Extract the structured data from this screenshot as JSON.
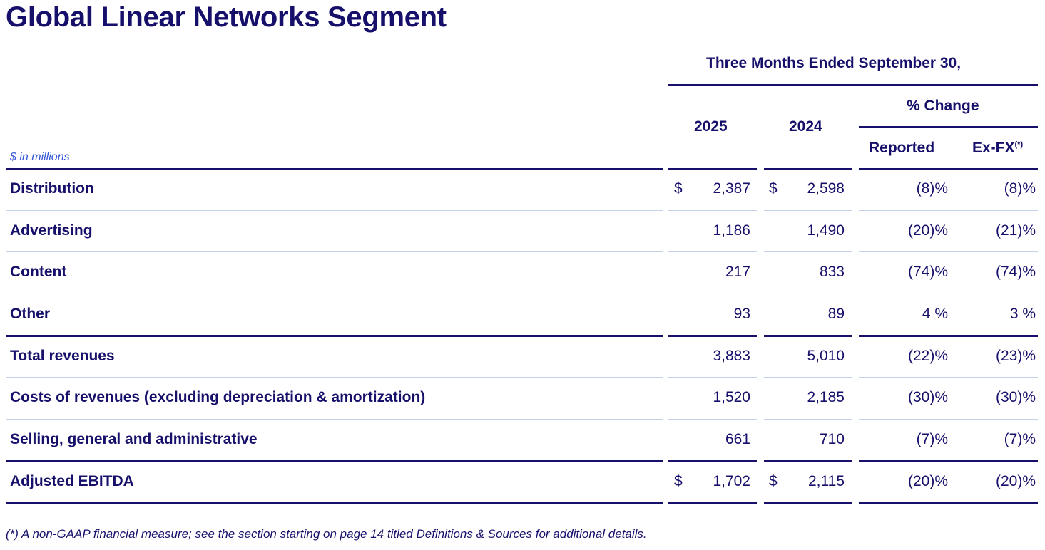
{
  "title": "Global Linear Networks Segment",
  "header": {
    "period": "Three Months Ended September 30,",
    "col_2025": "2025",
    "col_2024": "2024",
    "pct_change": "% Change",
    "reported": "Reported",
    "exfx": "Ex-FX",
    "exfx_sup": "(*)",
    "units": "$ in millions"
  },
  "rows": [
    {
      "label": "Distribution",
      "cur": "$",
      "v2025": "2,387",
      "v2024": "2,598",
      "reported": "(8)%",
      "exfx": "(8)%"
    },
    {
      "label": "Advertising",
      "cur": "",
      "v2025": "1,186",
      "v2024": "1,490",
      "reported": "(20)%",
      "exfx": "(21)%"
    },
    {
      "label": "Content",
      "cur": "",
      "v2025": "217",
      "v2024": "833",
      "reported": "(74)%",
      "exfx": "(74)%"
    },
    {
      "label": "Other",
      "cur": "",
      "v2025": "93",
      "v2024": "89",
      "reported": "4 %",
      "exfx": "3 %"
    },
    {
      "label": "Total revenues",
      "cur": "",
      "v2025": "3,883",
      "v2024": "5,010",
      "reported": "(22)%",
      "exfx": "(23)%"
    },
    {
      "label": "Costs of revenues (excluding depreciation & amortization)",
      "cur": "",
      "v2025": "1,520",
      "v2024": "2,185",
      "reported": "(30)%",
      "exfx": "(30)%"
    },
    {
      "label": "Selling, general and administrative",
      "cur": "",
      "v2025": "661",
      "v2024": "710",
      "reported": "(7)%",
      "exfx": "(7)%"
    },
    {
      "label": "Adjusted EBITDA",
      "cur": "$",
      "v2025": "1,702",
      "v2024": "2,115",
      "reported": "(20)%",
      "exfx": "(20)%"
    }
  ],
  "footnote": "(*) A non-GAAP financial measure; see the section starting on page 14 titled Definitions & Sources for additional details."
}
